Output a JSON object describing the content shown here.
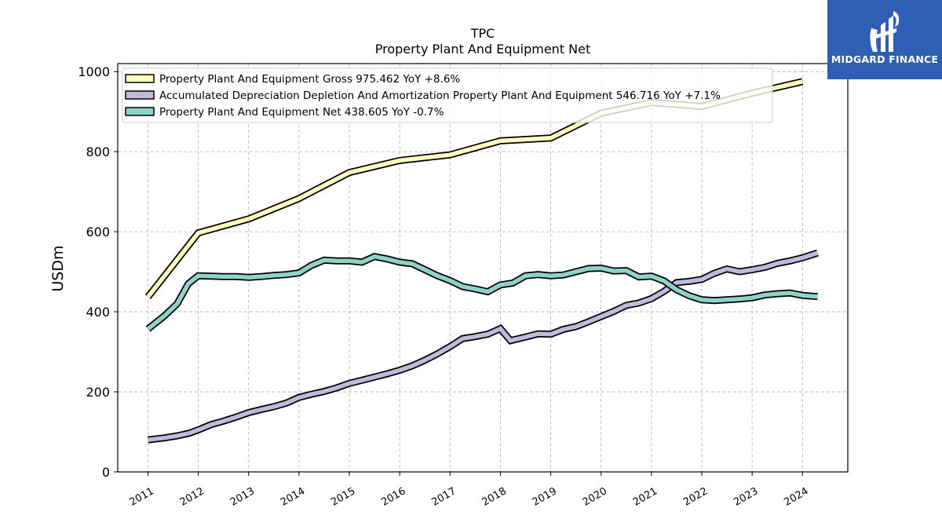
{
  "chart_data": {
    "type": "line",
    "title": "TPC",
    "subtitle": "Property Plant And Equipment Net",
    "ylabel": "USDm",
    "xlabel": "",
    "ylim": [
      0,
      1020
    ],
    "xlim": [
      2010.4,
      2024.9
    ],
    "yticks": [
      "0",
      "200",
      "400",
      "600",
      "800",
      "1000"
    ],
    "xticks": [
      "2011",
      "2012",
      "2013",
      "2014",
      "2015",
      "2016",
      "2017",
      "2018",
      "2019",
      "2020",
      "2021",
      "2022",
      "2023",
      "2024"
    ],
    "grid": true,
    "legend_position": "top-left",
    "series": [
      {
        "name": "Property Plant And Equipment Gross  975.462 YoY +8.6%",
        "color": "#ffffbf",
        "points": [
          [
            2011.0,
            437
          ],
          [
            2012.0,
            597
          ],
          [
            2013.0,
            632
          ],
          [
            2014.0,
            683
          ],
          [
            2015.0,
            748
          ],
          [
            2016.0,
            778
          ],
          [
            2017.0,
            792
          ],
          [
            2018.0,
            827
          ],
          [
            2019.0,
            834
          ],
          [
            2020.0,
            896
          ],
          [
            2021.0,
            923
          ],
          [
            2022.0,
            913
          ],
          [
            2023.0,
            946
          ],
          [
            2024.0,
            975
          ]
        ]
      },
      {
        "name": "Accumulated Depreciation Depletion And Amortization Property Plant And Equipment  546.716 YoY +7.1%",
        "color": "#bebada",
        "points": [
          [
            2011.0,
            80
          ],
          [
            2011.33,
            85
          ],
          [
            2011.58,
            90
          ],
          [
            2011.83,
            97
          ],
          [
            2012.0,
            105
          ],
          [
            2012.25,
            118
          ],
          [
            2012.5,
            127
          ],
          [
            2012.75,
            137
          ],
          [
            2013.0,
            148
          ],
          [
            2013.25,
            156
          ],
          [
            2013.5,
            163
          ],
          [
            2013.75,
            172
          ],
          [
            2014.0,
            186
          ],
          [
            2014.25,
            194
          ],
          [
            2014.5,
            201
          ],
          [
            2014.75,
            210
          ],
          [
            2015.0,
            221
          ],
          [
            2015.25,
            229
          ],
          [
            2015.5,
            237
          ],
          [
            2015.75,
            245
          ],
          [
            2016.0,
            254
          ],
          [
            2016.25,
            265
          ],
          [
            2016.5,
            279
          ],
          [
            2016.75,
            295
          ],
          [
            2017.0,
            313
          ],
          [
            2017.25,
            333
          ],
          [
            2017.5,
            338
          ],
          [
            2017.75,
            344
          ],
          [
            2018.0,
            358
          ],
          [
            2018.2,
            328
          ],
          [
            2018.5,
            337
          ],
          [
            2018.75,
            345
          ],
          [
            2019.0,
            344
          ],
          [
            2019.25,
            356
          ],
          [
            2019.5,
            363
          ],
          [
            2019.75,
            375
          ],
          [
            2020.0,
            388
          ],
          [
            2020.25,
            401
          ],
          [
            2020.5,
            416
          ],
          [
            2020.75,
            422
          ],
          [
            2021.0,
            433
          ],
          [
            2021.25,
            451
          ],
          [
            2021.5,
            473
          ],
          [
            2021.75,
            476
          ],
          [
            2022.0,
            481
          ],
          [
            2022.25,
            496
          ],
          [
            2022.5,
            507
          ],
          [
            2022.75,
            500
          ],
          [
            2023.0,
            505
          ],
          [
            2023.25,
            511
          ],
          [
            2023.5,
            521
          ],
          [
            2023.75,
            527
          ],
          [
            2024.0,
            535
          ],
          [
            2024.3,
            547
          ]
        ]
      },
      {
        "name": "Property Plant And Equipment Net  438.605 YoY -0.7%",
        "color": "#8dd3c7",
        "points": [
          [
            2011.0,
            357
          ],
          [
            2011.33,
            390
          ],
          [
            2011.58,
            420
          ],
          [
            2011.8,
            470
          ],
          [
            2012.0,
            490
          ],
          [
            2012.25,
            489
          ],
          [
            2012.5,
            488
          ],
          [
            2012.75,
            488
          ],
          [
            2013.0,
            486
          ],
          [
            2013.25,
            488
          ],
          [
            2013.5,
            491
          ],
          [
            2013.75,
            493
          ],
          [
            2014.0,
            497
          ],
          [
            2014.25,
            516
          ],
          [
            2014.5,
            529
          ],
          [
            2014.75,
            527
          ],
          [
            2015.0,
            527
          ],
          [
            2015.25,
            524
          ],
          [
            2015.5,
            538
          ],
          [
            2015.75,
            532
          ],
          [
            2016.0,
            524
          ],
          [
            2016.25,
            520
          ],
          [
            2016.5,
            505
          ],
          [
            2016.75,
            490
          ],
          [
            2017.0,
            478
          ],
          [
            2017.25,
            463
          ],
          [
            2017.5,
            457
          ],
          [
            2017.75,
            450
          ],
          [
            2018.0,
            467
          ],
          [
            2018.25,
            472
          ],
          [
            2018.5,
            490
          ],
          [
            2018.75,
            493
          ],
          [
            2019.0,
            490
          ],
          [
            2019.25,
            492
          ],
          [
            2019.5,
            500
          ],
          [
            2019.75,
            508
          ],
          [
            2020.0,
            509
          ],
          [
            2020.25,
            502
          ],
          [
            2020.5,
            503
          ],
          [
            2020.75,
            487
          ],
          [
            2021.0,
            489
          ],
          [
            2021.25,
            477
          ],
          [
            2021.5,
            455
          ],
          [
            2021.75,
            440
          ],
          [
            2022.0,
            430
          ],
          [
            2022.25,
            428
          ],
          [
            2022.5,
            430
          ],
          [
            2022.75,
            432
          ],
          [
            2023.0,
            435
          ],
          [
            2023.25,
            442
          ],
          [
            2023.5,
            445
          ],
          [
            2023.75,
            447
          ],
          [
            2024.0,
            441
          ],
          [
            2024.3,
            438
          ]
        ]
      }
    ]
  },
  "logo": {
    "text": "MIDGARD FINANCE"
  }
}
